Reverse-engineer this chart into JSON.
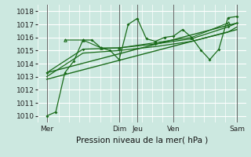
{
  "xlabel": "Pression niveau de la mer( hPa )",
  "bg_color": "#cce8e0",
  "grid_color": "#ffffff",
  "line_color": "#1a6b1a",
  "ylim": [
    1009.5,
    1018.5
  ],
  "yticks": [
    1010,
    1011,
    1012,
    1013,
    1014,
    1015,
    1016,
    1017,
    1018
  ],
  "day_labels": [
    "Mer",
    "Dim",
    "Jeu",
    "Ven",
    "Sam"
  ],
  "day_positions": [
    0,
    96,
    120,
    168,
    252
  ],
  "xlim": [
    -12,
    264
  ],
  "series1_x": [
    0,
    12,
    24,
    36,
    48,
    60,
    72,
    84,
    96,
    108,
    120,
    132,
    144,
    156,
    168,
    180,
    192,
    204,
    216,
    228,
    240,
    252
  ],
  "series1_y": [
    1010.0,
    1010.3,
    1013.3,
    1014.2,
    1015.8,
    1015.8,
    1015.2,
    1015.0,
    1014.3,
    1017.0,
    1017.45,
    1015.9,
    1015.7,
    1016.0,
    1016.1,
    1016.6,
    1016.0,
    1015.05,
    1014.3,
    1015.1,
    1017.5,
    1017.6
  ],
  "series2_x": [
    0,
    48,
    96,
    144,
    192,
    240,
    252
  ],
  "series2_y": [
    1013.3,
    1015.1,
    1015.2,
    1015.5,
    1015.9,
    1016.8,
    1017.1
  ],
  "series3_x": [
    0,
    48,
    96,
    144,
    192,
    240,
    252
  ],
  "series3_y": [
    1013.0,
    1014.8,
    1015.0,
    1015.3,
    1015.7,
    1016.4,
    1016.8
  ],
  "trend1_x": [
    0,
    252
  ],
  "trend1_y": [
    1013.3,
    1017.1
  ],
  "trend2_x": [
    0,
    252
  ],
  "trend2_y": [
    1012.8,
    1016.6
  ],
  "series_triangle_x": [
    24,
    48,
    72,
    96,
    144,
    192,
    240
  ],
  "series_triangle_y": [
    1015.8,
    1015.8,
    1015.2,
    1015.2,
    1015.6,
    1016.0,
    1017.1
  ]
}
